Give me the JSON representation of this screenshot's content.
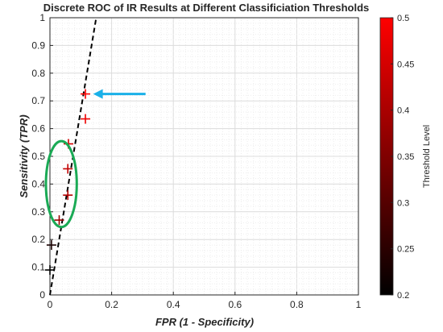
{
  "chart_data": {
    "type": "scatter",
    "title": "Discrete ROC of IR Results at Different Classificiation Thresholds",
    "xlabel": "FPR (1 - Specificity)",
    "ylabel": "Sensitivity (TPR)",
    "xlim": [
      0,
      1
    ],
    "ylim": [
      0,
      1
    ],
    "x_ticks": [
      "0",
      "0.2",
      "0.4",
      "0.6",
      "0.8",
      "1"
    ],
    "y_ticks": [
      "0",
      "0.1",
      "0.2",
      "0.3",
      "0.4",
      "0.5",
      "0.6",
      "0.7",
      "0.8",
      "0.9",
      "1"
    ],
    "grid": true,
    "marker": "+",
    "points": [
      {
        "x": 0.0,
        "y": 0.09,
        "threshold": 0.2
      },
      {
        "x": 0.005,
        "y": 0.18,
        "threshold": 0.23
      },
      {
        "x": 0.03,
        "y": 0.27,
        "threshold": 0.38
      },
      {
        "x": 0.058,
        "y": 0.36,
        "threshold": 0.41
      },
      {
        "x": 0.058,
        "y": 0.455,
        "threshold": 0.43
      },
      {
        "x": 0.06,
        "y": 0.545,
        "threshold": 0.45
      },
      {
        "x": 0.115,
        "y": 0.635,
        "threshold": 0.48
      },
      {
        "x": 0.115,
        "y": 0.725,
        "threshold": 0.5
      }
    ],
    "fit_line": {
      "style": "dashed",
      "color": "#000000",
      "from": [
        0.0,
        0.0
      ],
      "to": [
        0.15,
        1.0
      ]
    },
    "colorbar": {
      "label": "Threshold Level",
      "range": [
        0.2,
        0.5
      ],
      "ticks": [
        "0.2",
        "0.25",
        "0.3",
        "0.35",
        "0.4",
        "0.45",
        "0.5"
      ],
      "colors": [
        "#000000",
        "#ff0000"
      ]
    },
    "annotations": {
      "ellipse": {
        "color": "#1aaa55",
        "cx": 0.037,
        "cy": 0.4,
        "rx": 0.05,
        "ry": 0.155
      },
      "arrow": {
        "color": "#1ab0e8",
        "from": [
          0.31,
          0.725
        ],
        "to": [
          0.14,
          0.725
        ]
      }
    }
  }
}
